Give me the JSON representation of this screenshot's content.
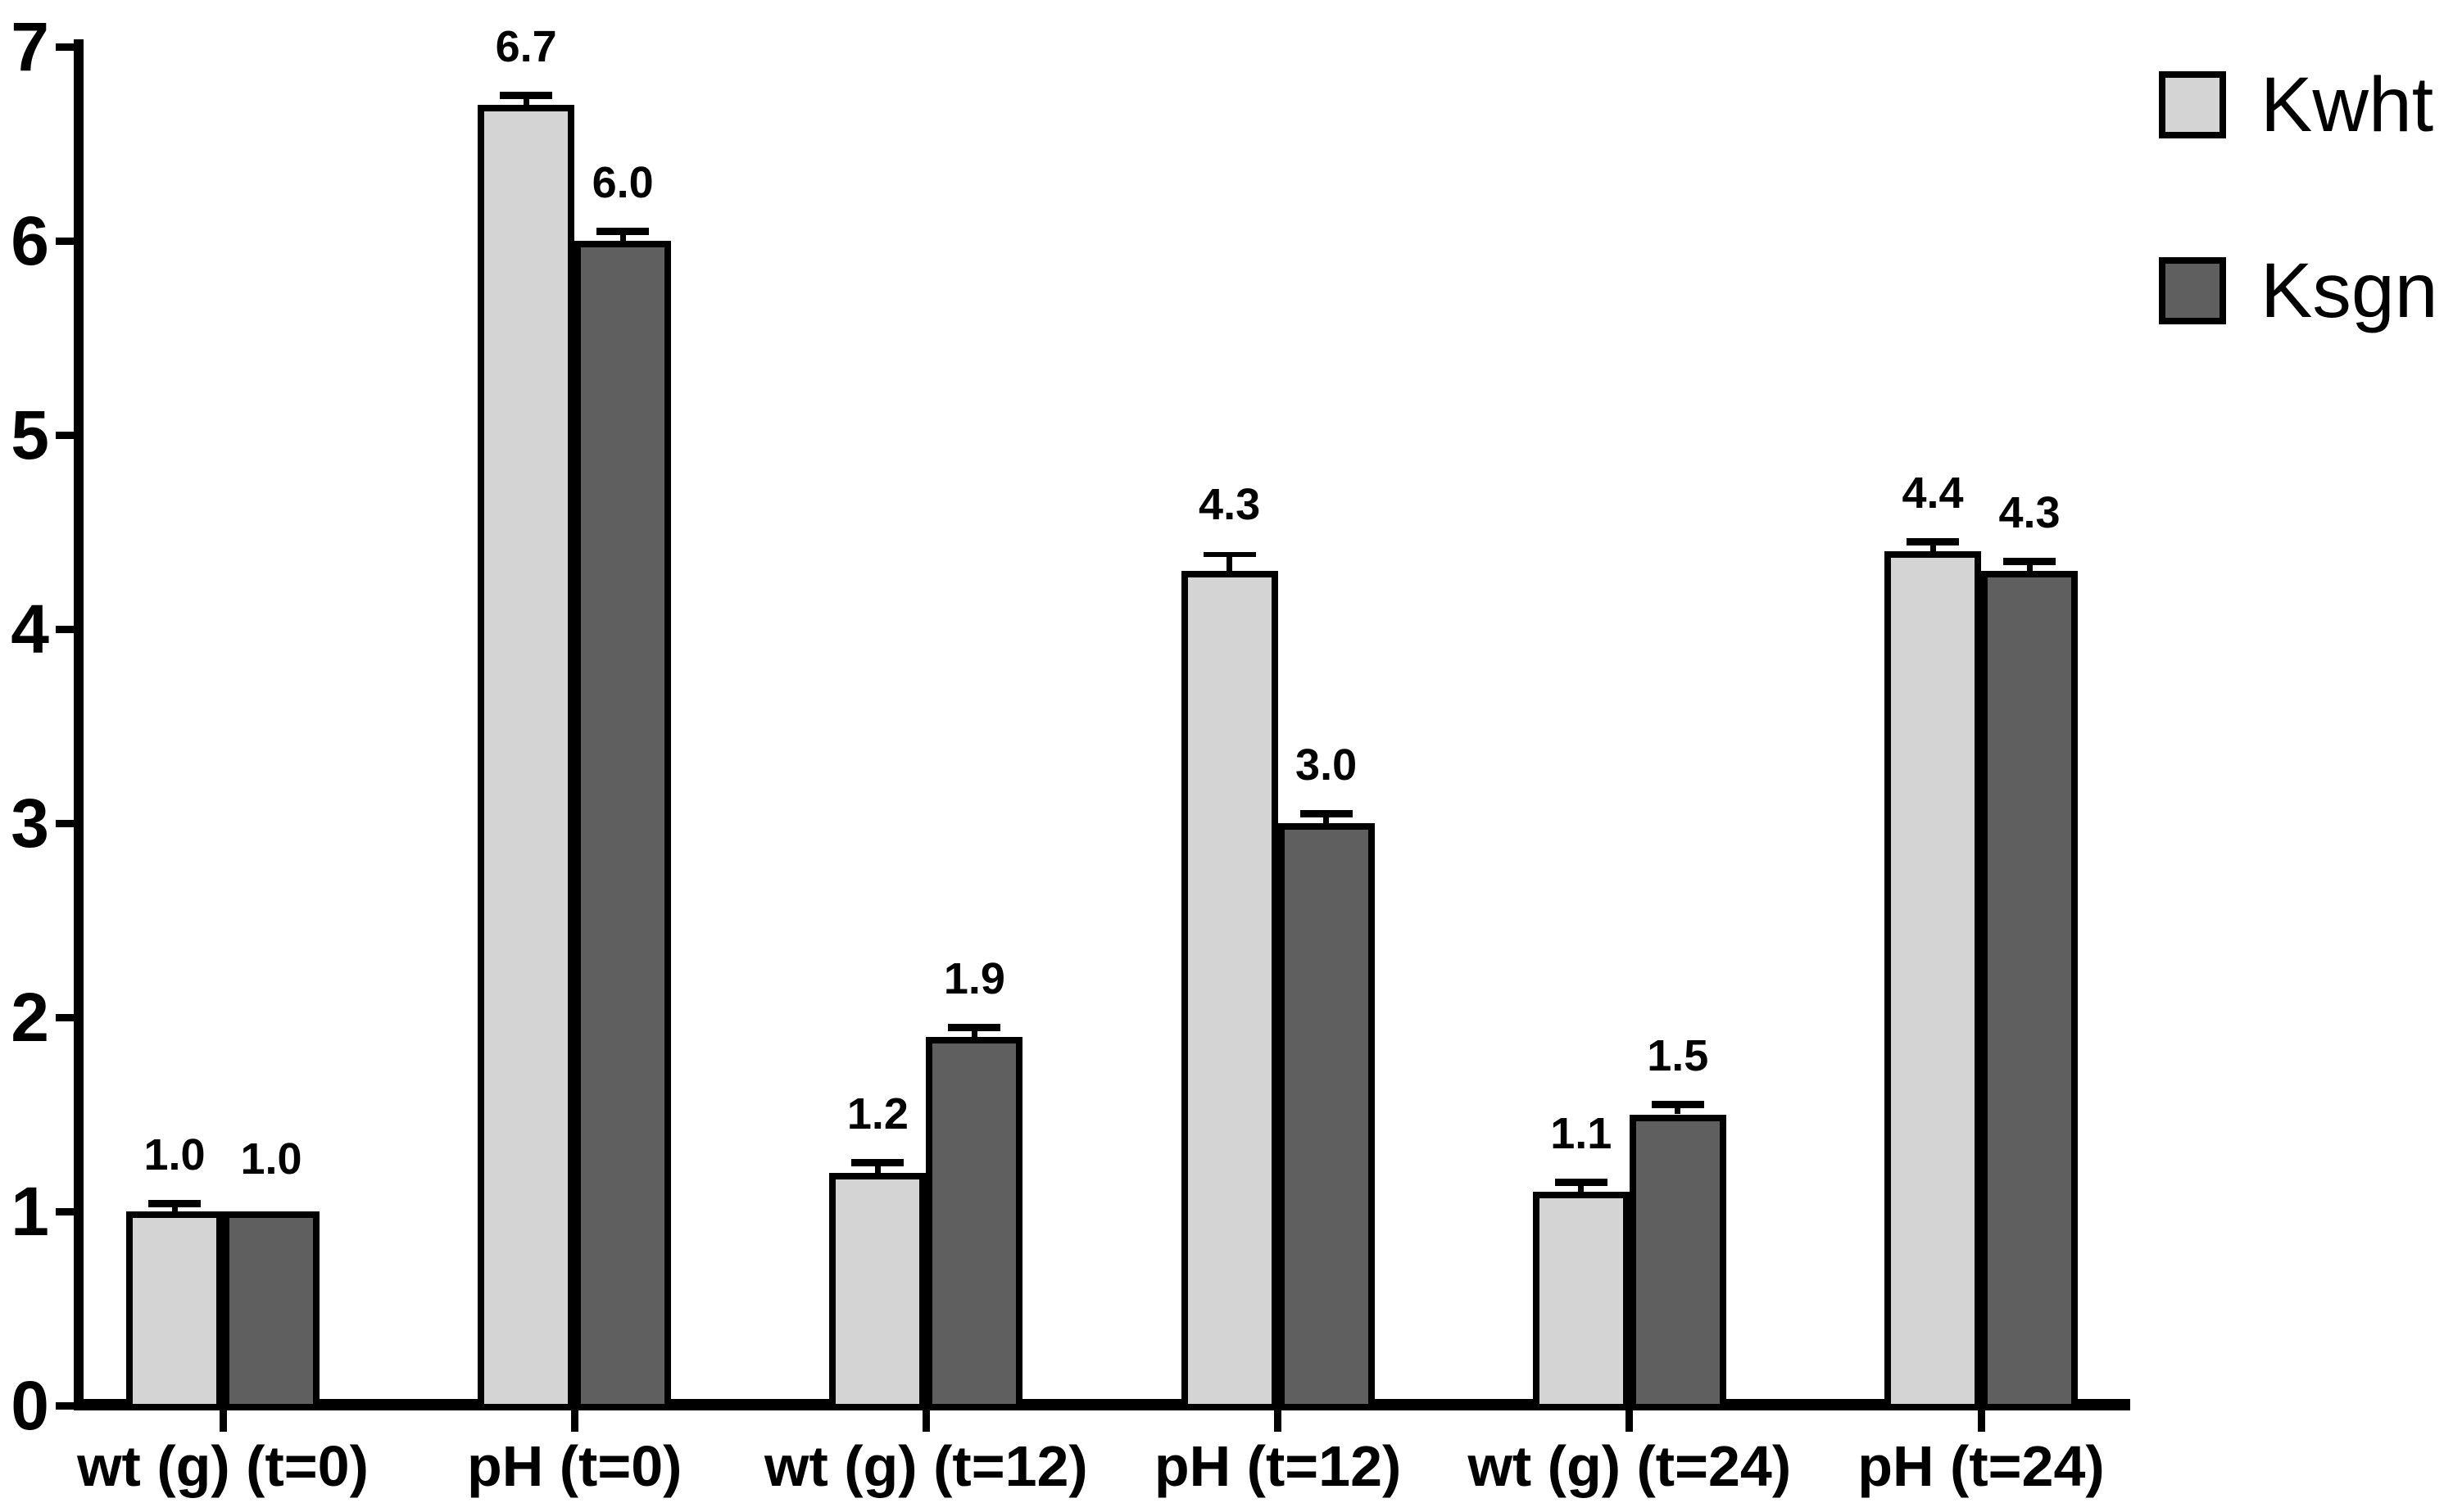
{
  "chart_data": {
    "type": "bar",
    "title": "",
    "categories": [
      "wt (g) (t=0)",
      "pH (t=0)",
      "wt (g) (t=12)",
      "pH (t=12)",
      "wt (g) (t=24)",
      "pH (t=24)"
    ],
    "series": [
      {
        "name": "Kwht",
        "color": "#d4d4d4",
        "values": [
          1.0,
          6.7,
          1.2,
          4.3,
          1.1,
          4.4
        ],
        "errors": [
          0.02,
          0.03,
          0.03,
          0.07,
          0.03,
          0.03
        ]
      },
      {
        "name": "Ksgn",
        "color": "#5f5f5f",
        "values": [
          1.0,
          6.0,
          1.9,
          3.0,
          1.5,
          4.3
        ],
        "errors": [
          0.0,
          0.03,
          0.03,
          0.03,
          0.03,
          0.03
        ]
      }
    ],
    "value_labels": [
      [
        "1.0",
        "6.7",
        "1.2",
        "4.3",
        "1.1",
        "4.4"
      ],
      [
        "1.0",
        "6.0",
        "1.9",
        "3.0",
        "1.5",
        "4.3"
      ]
    ],
    "xlabel": "",
    "ylabel": "",
    "ylim": [
      0,
      7
    ],
    "yticks": [
      "0",
      "1",
      "2",
      "3",
      "4",
      "5",
      "6",
      "7"
    ],
    "grid": false,
    "legend_position": "top-right",
    "bar_outline_color": "#000000",
    "axis_color": "#000000",
    "background_color": "#ffffff",
    "error_bars": "caps-above-bar-tops"
  }
}
